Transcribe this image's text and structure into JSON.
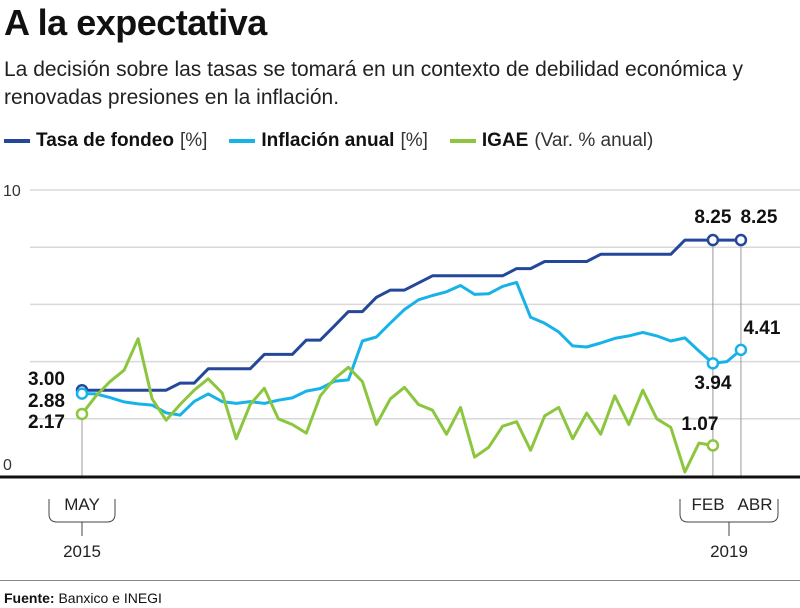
{
  "header": {
    "title": "A la expectativa",
    "subtitle": "La decisión sobre las tasas se tomará en un contexto de debilidad económica y renovadas presiones en la inflación."
  },
  "footer": {
    "source_label": "Fuente:",
    "source_text": "Banxico e INEGI"
  },
  "chart_data": {
    "type": "line",
    "ylim": [
      0,
      10
    ],
    "y_ticks": [
      "0",
      "10"
    ],
    "grid": true,
    "legend_position": "top-left",
    "x_start": "2015-05",
    "x_end": "2019-04",
    "x_tick_labels": [
      {
        "month": "MAY",
        "year": "2015"
      },
      {
        "month": "FEB",
        "year": "2019"
      },
      {
        "month": "ABR",
        "year": "2019"
      }
    ],
    "series": [
      {
        "name": "Tasa de fondeo",
        "unit": "[%]",
        "color": "#25479a",
        "values": [
          3.0,
          3.0,
          3.0,
          3.0,
          3.0,
          3.0,
          3.0,
          3.25,
          3.25,
          3.75,
          3.75,
          3.75,
          3.75,
          4.25,
          4.25,
          4.25,
          4.75,
          4.75,
          5.25,
          5.75,
          5.75,
          6.25,
          6.5,
          6.5,
          6.75,
          7.0,
          7.0,
          7.0,
          7.0,
          7.0,
          7.0,
          7.25,
          7.25,
          7.5,
          7.5,
          7.5,
          7.5,
          7.75,
          7.75,
          7.75,
          7.75,
          7.75,
          7.75,
          8.25,
          8.25,
          8.25,
          8.25,
          8.25
        ],
        "labels": [
          {
            "month_index": 0,
            "text": "3.00"
          },
          {
            "month_index": 45,
            "text": "8.25"
          },
          {
            "month_index": 47,
            "text": "8.25"
          }
        ]
      },
      {
        "name": "Inflación anual",
        "unit": "[%]",
        "color": "#17b3e8",
        "values": [
          2.88,
          2.87,
          2.74,
          2.59,
          2.52,
          2.48,
          2.21,
          2.13,
          2.61,
          2.87,
          2.6,
          2.54,
          2.6,
          2.54,
          2.65,
          2.73,
          2.97,
          3.06,
          3.31,
          3.36,
          4.72,
          4.86,
          5.35,
          5.82,
          6.16,
          6.31,
          6.44,
          6.66,
          6.35,
          6.37,
          6.63,
          6.77,
          5.55,
          5.34,
          5.04,
          4.55,
          4.51,
          4.65,
          4.81,
          4.9,
          5.02,
          4.9,
          4.72,
          4.83,
          4.37,
          3.94,
          4.0,
          4.41
        ],
        "labels": [
          {
            "month_index": 0,
            "text": "2.88"
          },
          {
            "month_index": 45,
            "text": "3.94"
          },
          {
            "month_index": 47,
            "text": "4.41"
          }
        ]
      },
      {
        "name": "IGAE",
        "unit": "(Var. % anual)",
        "color": "#8cc63f",
        "values": [
          2.17,
          2.8,
          3.3,
          3.7,
          4.8,
          2.7,
          1.95,
          2.5,
          3.0,
          3.4,
          2.9,
          1.3,
          2.5,
          3.07,
          2.0,
          1.8,
          1.5,
          2.8,
          3.4,
          3.8,
          3.3,
          1.8,
          2.7,
          3.1,
          2.5,
          2.3,
          1.46,
          2.4,
          0.66,
          1.0,
          1.74,
          1.9,
          0.9,
          2.1,
          2.4,
          1.3,
          2.2,
          1.46,
          2.8,
          1.8,
          3.0,
          2.0,
          1.7,
          0.14,
          1.15,
          1.07
        ],
        "labels": [
          {
            "month_index": 0,
            "text": "2.17"
          },
          {
            "month_index": 45,
            "text": "1.07"
          }
        ]
      }
    ]
  }
}
